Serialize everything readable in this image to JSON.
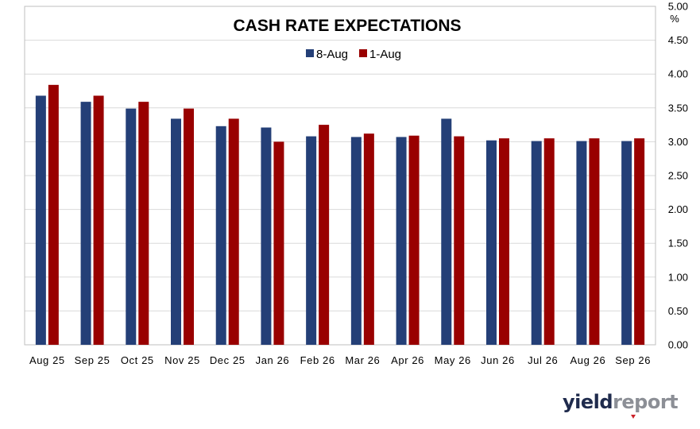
{
  "colors": {
    "series_8aug": "#243f77",
    "series_1aug": "#990000",
    "grid": "#d9d9d9",
    "border": "#bfbfbf"
  },
  "logo": {
    "part1": "yield",
    "part2": "report"
  },
  "chart_data": {
    "type": "bar",
    "title": "CASH RATE EXPECTATIONS",
    "ylabel": "%",
    "xlabel": "",
    "ylim": [
      0,
      5
    ],
    "y_ticks": [
      "0.00",
      "0.50",
      "1.00",
      "1.50",
      "2.00",
      "2.50",
      "3.00",
      "3.50",
      "4.00",
      "4.50",
      "5.00"
    ],
    "y_axis_position": "right",
    "grid": true,
    "legend_position": "top",
    "categories": [
      "Aug 25",
      "Sep 25",
      "Oct 25",
      "Nov 25",
      "Dec 25",
      "Jan 26",
      "Feb 26",
      "Mar 26",
      "Apr 26",
      "May 26",
      "Jun 26",
      "Jul 26",
      "Aug 26",
      "Sep 26"
    ],
    "series": [
      {
        "name": "8-Aug",
        "color": "#243f77",
        "values": [
          3.68,
          3.59,
          3.49,
          3.34,
          3.23,
          3.21,
          3.08,
          3.07,
          3.07,
          3.34,
          3.02,
          3.01,
          3.01,
          3.01
        ]
      },
      {
        "name": "1-Aug",
        "color": "#990000",
        "values": [
          3.84,
          3.68,
          3.59,
          3.49,
          3.34,
          3.0,
          3.25,
          3.12,
          3.09,
          3.08,
          3.05,
          3.05,
          3.05,
          3.05
        ]
      }
    ]
  }
}
